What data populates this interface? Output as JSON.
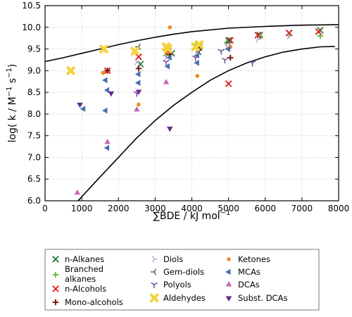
{
  "chart_data": {
    "type": "scatter",
    "xlabel": "∑BDE / kJ mol",
    "xlabel_sup": "−1",
    "ylabel_parts": [
      "log( k / M",
      "−1",
      " s",
      "−1",
      ")"
    ],
    "xlim": [
      0,
      8000
    ],
    "ylim": [
      6.0,
      10.5
    ],
    "x_ticks": [
      0,
      1000,
      2000,
      3000,
      4000,
      5000,
      6000,
      7000,
      8000
    ],
    "y_ticks": [
      6.0,
      6.5,
      7.0,
      7.5,
      8.0,
      8.5,
      9.0,
      9.5,
      10.0,
      10.5
    ],
    "y_tick_labels": [
      "6.0",
      "6.5",
      "7.0",
      "7.5",
      "8.0",
      "8.5",
      "9.0",
      "9.5",
      "10.0",
      "10.5"
    ],
    "grid": true,
    "legend_position": "below",
    "boundary_curves": [
      {
        "points": [
          [
            0,
            9.21
          ],
          [
            500,
            9.3
          ],
          [
            1000,
            9.4
          ],
          [
            1500,
            9.5
          ],
          [
            2000,
            9.6
          ],
          [
            2500,
            9.69
          ],
          [
            3000,
            9.77
          ],
          [
            3500,
            9.84
          ],
          [
            4000,
            9.9
          ],
          [
            5000,
            9.98
          ],
          [
            6000,
            10.02
          ],
          [
            7000,
            10.05
          ],
          [
            8000,
            10.06
          ]
        ]
      },
      {
        "points": [
          [
            900,
            6.0
          ],
          [
            1500,
            6.55
          ],
          [
            2000,
            7.0
          ],
          [
            2500,
            7.45
          ],
          [
            3000,
            7.85
          ],
          [
            3500,
            8.2
          ],
          [
            4000,
            8.5
          ],
          [
            4500,
            8.78
          ],
          [
            5000,
            9.0
          ],
          [
            5500,
            9.18
          ],
          [
            6000,
            9.32
          ],
          [
            6500,
            9.43
          ],
          [
            7000,
            9.5
          ],
          [
            7500,
            9.55
          ],
          [
            7900,
            9.56
          ]
        ]
      }
    ],
    "series": [
      {
        "name": "n-Alkanes",
        "color": "#1b7a3a",
        "marker": "x",
        "points": [
          [
            2600,
            9.15
          ],
          [
            3450,
            9.4
          ],
          [
            4200,
            9.55
          ],
          [
            5000,
            9.7
          ],
          [
            5850,
            9.82
          ],
          [
            6650,
            9.87
          ],
          [
            7500,
            9.93
          ]
        ]
      },
      {
        "name": "Branched alkanes",
        "color": "#6abf4b",
        "marker": "plus",
        "points": [
          [
            3300,
            9.35
          ],
          [
            4100,
            9.6
          ],
          [
            4950,
            9.65
          ],
          [
            5850,
            9.8
          ],
          [
            6650,
            9.82
          ],
          [
            7500,
            9.8
          ]
        ]
      },
      {
        "name": "n-Alcohols",
        "color": "#e31a1c",
        "marker": "x",
        "points": [
          [
            1700,
            9.0
          ],
          [
            2550,
            9.32
          ],
          [
            3350,
            9.45
          ],
          [
            4200,
            9.58
          ],
          [
            5000,
            8.7
          ],
          [
            5050,
            9.7
          ],
          [
            5800,
            9.82
          ],
          [
            6650,
            9.87
          ],
          [
            7450,
            9.9
          ]
        ]
      },
      {
        "name": "Mono-alcohols",
        "color": "#7a1a1a",
        "marker": "plus",
        "points": [
          [
            1700,
            9.0
          ],
          [
            2550,
            9.05
          ],
          [
            3400,
            9.38
          ],
          [
            4200,
            9.48
          ],
          [
            5050,
            9.3
          ]
        ]
      },
      {
        "name": "Diols",
        "color": "#c9a0d6",
        "marker": "triR",
        "points": [
          [
            2500,
            9.2
          ],
          [
            3300,
            9.3
          ],
          [
            4150,
            9.38
          ],
          [
            4950,
            9.55
          ],
          [
            5800,
            9.72
          ],
          [
            6650,
            9.8
          ]
        ]
      },
      {
        "name": "Gem-diols",
        "color": "#555555",
        "marker": "triL",
        "points": [
          [
            2550,
            9.55
          ],
          [
            3300,
            9.5
          ],
          [
            4200,
            9.43
          ],
          [
            5000,
            9.65
          ]
        ]
      },
      {
        "name": "Polyols",
        "color": "#6a3d9a",
        "marker": "triD",
        "points": [
          [
            2500,
            8.48
          ],
          [
            3300,
            9.2
          ],
          [
            4100,
            9.3
          ],
          [
            4800,
            9.45
          ],
          [
            4900,
            9.25
          ],
          [
            5650,
            9.18
          ]
        ]
      },
      {
        "name": "Aldehydes",
        "color": "#f2d43a",
        "marker": "X",
        "points": [
          [
            700,
            9.0
          ],
          [
            1600,
            9.5
          ],
          [
            2450,
            9.45
          ],
          [
            3300,
            9.55
          ],
          [
            3350,
            9.5
          ],
          [
            4100,
            9.55
          ],
          [
            4200,
            9.6
          ]
        ]
      },
      {
        "name": "Ketones",
        "color": "#f08a24",
        "marker": "circle",
        "points": [
          [
            1580,
            8.95
          ],
          [
            2550,
            8.22
          ],
          [
            3400,
            10.0
          ],
          [
            4150,
            8.88
          ],
          [
            5050,
            9.55
          ]
        ]
      },
      {
        "name": "MCAs",
        "color": "#4a6fb0",
        "marker": "triLeft",
        "points": [
          [
            1050,
            8.12
          ],
          [
            1650,
            8.08
          ],
          [
            1650,
            8.78
          ],
          [
            1700,
            8.55
          ],
          [
            1700,
            7.22
          ],
          [
            2550,
            8.72
          ],
          [
            2550,
            8.92
          ],
          [
            3350,
            9.1
          ],
          [
            3400,
            9.3
          ],
          [
            4150,
            9.18
          ],
          [
            4150,
            9.35
          ],
          [
            5000,
            9.5
          ]
        ]
      },
      {
        "name": "DCAs",
        "color": "#c36ab6",
        "marker": "triUp",
        "points": [
          [
            880,
            6.18
          ],
          [
            1700,
            7.35
          ],
          [
            2500,
            8.1
          ],
          [
            3300,
            8.73
          ]
        ]
      },
      {
        "name": "Subst. DCAs",
        "color": "#6b2a8a",
        "marker": "triDown",
        "points": [
          [
            950,
            8.22
          ],
          [
            1800,
            8.48
          ],
          [
            2550,
            8.52
          ],
          [
            3400,
            7.67
          ]
        ]
      }
    ]
  }
}
